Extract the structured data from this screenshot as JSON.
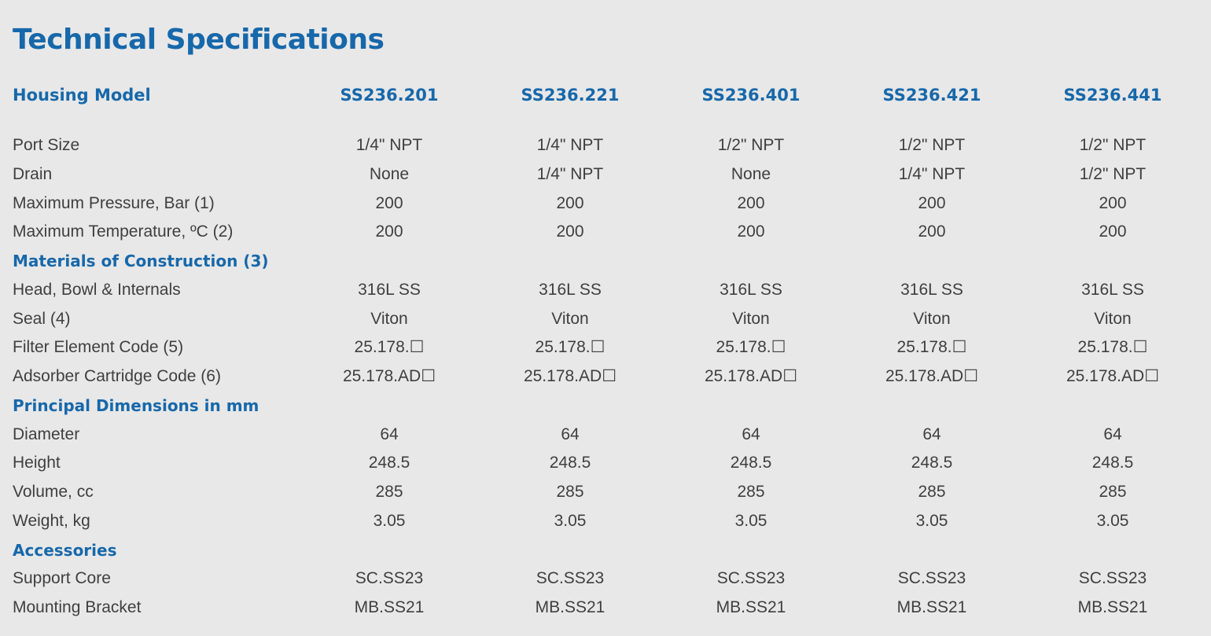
{
  "title": "Technical Specifications",
  "header": {
    "label": "Housing Model",
    "models": [
      "SS236.201",
      "SS236.221",
      "SS236.401",
      "SS236.421",
      "SS236.441"
    ]
  },
  "rows": [
    {
      "type": "data",
      "label": "Port Size",
      "values": [
        "1/4\" NPT",
        "1/4\" NPT",
        "1/2\" NPT",
        "1/2\" NPT",
        "1/2\" NPT"
      ]
    },
    {
      "type": "data",
      "label": "Drain",
      "values": [
        "None",
        "1/4\" NPT",
        "None",
        "1/4\" NPT",
        "1/2\" NPT"
      ]
    },
    {
      "type": "data",
      "label": "Maximum Pressure, Bar (1)",
      "values": [
        "200",
        "200",
        "200",
        "200",
        "200"
      ]
    },
    {
      "type": "data",
      "label": "Maximum Temperature, ºC (2)",
      "values": [
        "200",
        "200",
        "200",
        "200",
        "200"
      ]
    },
    {
      "type": "section",
      "label": "Materials of Construction (3)"
    },
    {
      "type": "data",
      "label": "Head, Bowl & Internals",
      "values": [
        "316L SS",
        "316L SS",
        "316L SS",
        "316L SS",
        "316L SS"
      ]
    },
    {
      "type": "data",
      "label": "Seal (4)",
      "values": [
        "Viton",
        "Viton",
        "Viton",
        "Viton",
        "Viton"
      ]
    },
    {
      "type": "data",
      "label": "Filter Element Code (5)",
      "values": [
        "25.178.☐",
        "25.178.☐",
        "25.178.☐",
        "25.178.☐",
        "25.178.☐"
      ]
    },
    {
      "type": "data",
      "label": "Adsorber Cartridge Code (6)",
      "values": [
        "25.178.AD☐",
        "25.178.AD☐",
        "25.178.AD☐",
        "25.178.AD☐",
        "25.178.AD☐"
      ]
    },
    {
      "type": "section",
      "label": "Principal Dimensions in mm"
    },
    {
      "type": "data",
      "label": "Diameter",
      "values": [
        "64",
        "64",
        "64",
        "64",
        "64"
      ]
    },
    {
      "type": "data",
      "label": "Height",
      "values": [
        "248.5",
        "248.5",
        "248.5",
        "248.5",
        "248.5"
      ]
    },
    {
      "type": "data",
      "label": "Volume, cc",
      "values": [
        "285",
        "285",
        "285",
        "285",
        "285"
      ]
    },
    {
      "type": "data",
      "label": "Weight, kg",
      "values": [
        "3.05",
        "3.05",
        "3.05",
        "3.05",
        "3.05"
      ]
    },
    {
      "type": "section",
      "label": "Accessories"
    },
    {
      "type": "data",
      "label": "Support Core",
      "values": [
        "SC.SS23",
        "SC.SS23",
        "SC.SS23",
        "SC.SS23",
        "SC.SS23"
      ]
    },
    {
      "type": "data",
      "label": "Mounting Bracket",
      "values": [
        "MB.SS21",
        "MB.SS21",
        "MB.SS21",
        "MB.SS21",
        "MB.SS21"
      ]
    }
  ]
}
